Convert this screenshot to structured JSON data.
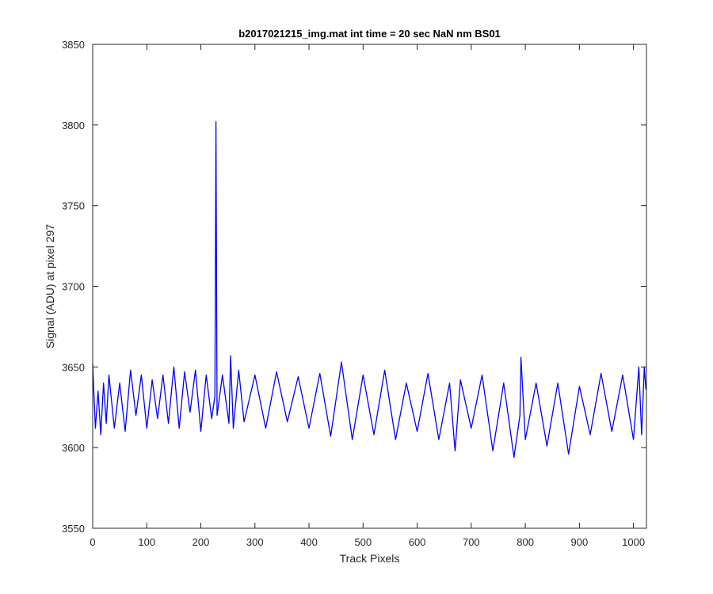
{
  "chart_data": {
    "type": "line",
    "title": "b2017021215_img.mat int time = 20 sec  NaN nm BS01",
    "xlabel": "Track Pixels",
    "ylabel": "Signal (ADU) at pixel 297",
    "xlim": [
      0,
      1024
    ],
    "ylim": [
      3550,
      3850
    ],
    "xticks": [
      0,
      100,
      200,
      300,
      400,
      500,
      600,
      700,
      800,
      900,
      1000
    ],
    "yticks": [
      3550,
      3600,
      3650,
      3700,
      3750,
      3800,
      3850
    ],
    "grid": false,
    "legend": "none",
    "series": [
      {
        "color": "#0000ff",
        "x": [
          0,
          5,
          10,
          15,
          20,
          25,
          30,
          40,
          50,
          60,
          70,
          80,
          90,
          100,
          110,
          120,
          130,
          140,
          150,
          160,
          170,
          180,
          190,
          200,
          210,
          220,
          226,
          228,
          230,
          240,
          252,
          255,
          260,
          270,
          280,
          300,
          320,
          340,
          360,
          380,
          400,
          420,
          440,
          460,
          480,
          500,
          520,
          540,
          560,
          580,
          600,
          620,
          640,
          660,
          670,
          680,
          700,
          720,
          740,
          760,
          779,
          790,
          792,
          800,
          820,
          840,
          860,
          880,
          900,
          920,
          940,
          960,
          980,
          1000,
          1010,
          1015,
          1020,
          1023
        ],
        "y": [
          3652,
          3612,
          3635,
          3608,
          3640,
          3615,
          3645,
          3612,
          3640,
          3610,
          3648,
          3620,
          3645,
          3612,
          3642,
          3618,
          3645,
          3615,
          3650,
          3612,
          3647,
          3622,
          3648,
          3610,
          3645,
          3618,
          3632,
          3802,
          3620,
          3645,
          3615,
          3657,
          3612,
          3648,
          3616,
          3645,
          3612,
          3647,
          3616,
          3644,
          3612,
          3646,
          3607,
          3653,
          3605,
          3645,
          3608,
          3648,
          3605,
          3640,
          3610,
          3646,
          3605,
          3640,
          3598,
          3642,
          3612,
          3645,
          3598,
          3640,
          3594,
          3620,
          3656,
          3605,
          3640,
          3601,
          3640,
          3596,
          3638,
          3608,
          3646,
          3610,
          3645,
          3605,
          3650,
          3608,
          3650,
          3636
        ]
      }
    ]
  }
}
